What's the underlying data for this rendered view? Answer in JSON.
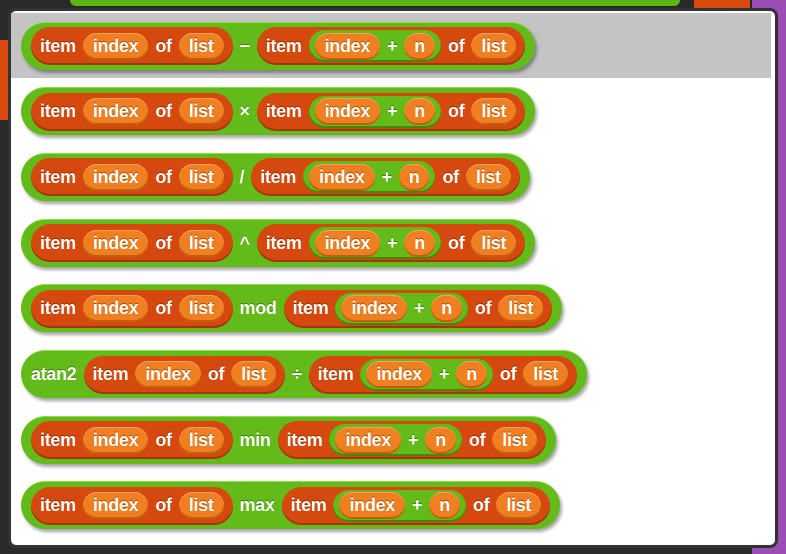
{
  "colors": {
    "outer": "#62bb18",
    "item": "#d6490e",
    "slot": "#f07f22",
    "highlight": "#c4c4c4"
  },
  "labels": {
    "item": "item",
    "index": "index",
    "of": "of",
    "list": "list",
    "plus": "+",
    "n": "n"
  },
  "rows": [
    {
      "prefix": "",
      "op": "−",
      "highlighted": true
    },
    {
      "prefix": "",
      "op": "×",
      "highlighted": false
    },
    {
      "prefix": "",
      "op": "/",
      "highlighted": false
    },
    {
      "prefix": "",
      "op": "^",
      "highlighted": false
    },
    {
      "prefix": "",
      "op": "mod",
      "highlighted": false
    },
    {
      "prefix": "atan2",
      "op": "÷",
      "highlighted": false
    },
    {
      "prefix": "",
      "op": "min",
      "highlighted": false
    },
    {
      "prefix": "",
      "op": "max",
      "highlighted": false
    }
  ]
}
